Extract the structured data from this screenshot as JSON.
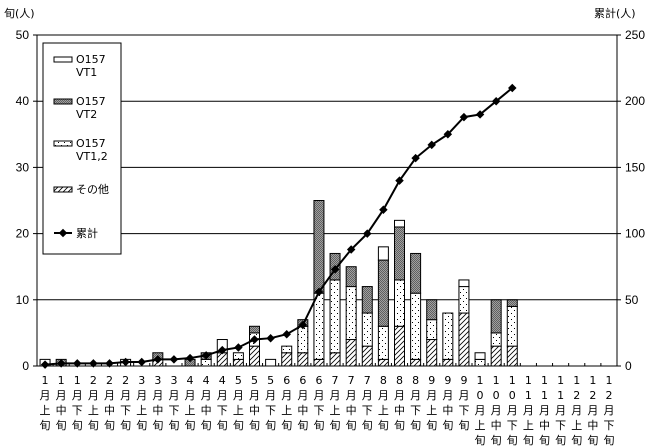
{
  "chart_data": {
    "type": "bar",
    "stacked": true,
    "secondary_type": "line",
    "title": "",
    "ylabel_left": "旬(人)",
    "ylabel_right": "累計(人)",
    "ylim_left": [
      0,
      50
    ],
    "yticks_left": [
      0,
      10,
      20,
      30,
      40,
      50
    ],
    "ylim_right": [
      0,
      250
    ],
    "yticks_right": [
      0,
      50,
      100,
      150,
      200,
      250
    ],
    "grid": true,
    "legend_position": "upper-left",
    "categories": [
      "1月上旬",
      "1月中旬",
      "1月下旬",
      "2月上旬",
      "2月中旬",
      "2月下旬",
      "3月上旬",
      "3月中旬",
      "3月下旬",
      "4月上旬",
      "4月中旬",
      "4月下旬",
      "5月上旬",
      "5月中旬",
      "5月下旬",
      "6月上旬",
      "6月中旬",
      "6月下旬",
      "7月上旬",
      "7月中旬",
      "7月下旬",
      "8月上旬",
      "8月中旬",
      "8月下旬",
      "9月上旬",
      "9月中旬",
      "9月下旬",
      "10月上旬",
      "10月中旬",
      "10月下旬",
      "11月上旬",
      "11月中旬",
      "11月下旬",
      "12月上旬",
      "12月中旬",
      "12月下旬"
    ],
    "category_labels": [
      [
        "1",
        "月",
        "上",
        "旬"
      ],
      [
        "1",
        "月",
        "中",
        "旬"
      ],
      [
        "1",
        "月",
        "下",
        "旬"
      ],
      [
        "2",
        "月",
        "上",
        "旬"
      ],
      [
        "2",
        "月",
        "中",
        "旬"
      ],
      [
        "2",
        "月",
        "下",
        "旬"
      ],
      [
        "3",
        "月",
        "上",
        "旬"
      ],
      [
        "3",
        "月",
        "中",
        "旬"
      ],
      [
        "3",
        "月",
        "下",
        "旬"
      ],
      [
        "4",
        "月",
        "上",
        "旬"
      ],
      [
        "4",
        "月",
        "中",
        "旬"
      ],
      [
        "4",
        "月",
        "下",
        "旬"
      ],
      [
        "5",
        "月",
        "上",
        "旬"
      ],
      [
        "5",
        "月",
        "中",
        "旬"
      ],
      [
        "5",
        "月",
        "下",
        "旬"
      ],
      [
        "6",
        "月",
        "上",
        "旬"
      ],
      [
        "6",
        "月",
        "中",
        "旬"
      ],
      [
        "6",
        "月",
        "下",
        "旬"
      ],
      [
        "7",
        "月",
        "上",
        "旬"
      ],
      [
        "7",
        "月",
        "中",
        "旬"
      ],
      [
        "7",
        "月",
        "下",
        "旬"
      ],
      [
        "8",
        "月",
        "上",
        "旬"
      ],
      [
        "8",
        "月",
        "中",
        "旬"
      ],
      [
        "8",
        "月",
        "下",
        "旬"
      ],
      [
        "9",
        "月",
        "上",
        "旬"
      ],
      [
        "9",
        "月",
        "中",
        "旬"
      ],
      [
        "9",
        "月",
        "下",
        "旬"
      ],
      [
        "1",
        "0",
        "月",
        "上",
        "旬"
      ],
      [
        "1",
        "0",
        "月",
        "中",
        "旬"
      ],
      [
        "1",
        "0",
        "月",
        "下",
        "旬"
      ],
      [
        "1",
        "1",
        "月",
        "上",
        "旬"
      ],
      [
        "1",
        "1",
        "月",
        "中",
        "旬"
      ],
      [
        "1",
        "1",
        "月",
        "下",
        "旬"
      ],
      [
        "1",
        "2",
        "月",
        "上",
        "旬"
      ],
      [
        "1",
        "2",
        "月",
        "中",
        "旬"
      ],
      [
        "1",
        "2",
        "月",
        "下",
        "旬"
      ]
    ],
    "series": [
      {
        "name": "その他",
        "kind": "bar",
        "pattern": "hatch",
        "values": [
          0,
          0,
          0,
          0,
          0,
          0,
          0,
          1,
          0,
          0,
          0,
          2,
          1,
          3,
          0,
          2,
          2,
          1,
          2,
          4,
          3,
          1,
          6,
          1,
          4,
          1,
          8,
          0,
          3,
          3,
          0,
          0,
          0,
          0,
          0,
          0
        ]
      },
      {
        "name": "O157 VT1,2",
        "kind": "bar",
        "pattern": "dots",
        "values": [
          0,
          0,
          0,
          0,
          0,
          1,
          0,
          0,
          0,
          0,
          1,
          0,
          1,
          2,
          0,
          1,
          4,
          10,
          11,
          8,
          5,
          5,
          7,
          10,
          3,
          7,
          4,
          1,
          2,
          6,
          0,
          0,
          0,
          0,
          0,
          0
        ]
      },
      {
        "name": "O157 VT2",
        "kind": "bar",
        "pattern": "gray",
        "values": [
          0,
          1,
          0,
          0,
          0,
          0,
          0,
          1,
          0,
          1,
          1,
          0,
          0,
          1,
          0,
          0,
          1,
          14,
          4,
          3,
          4,
          10,
          8,
          6,
          3,
          0,
          0,
          0,
          5,
          1,
          0,
          0,
          0,
          0,
          0,
          0
        ]
      },
      {
        "name": "O157 VT1",
        "kind": "bar",
        "pattern": "white",
        "values": [
          1,
          0,
          0,
          0,
          0,
          0,
          0,
          0,
          0,
          0,
          0,
          2,
          0,
          0,
          1,
          0,
          0,
          0,
          0,
          0,
          0,
          2,
          1,
          0,
          0,
          0,
          1,
          1,
          0,
          0,
          0,
          0,
          0,
          0,
          0,
          0
        ]
      },
      {
        "name": "累計",
        "kind": "line",
        "axis": "right",
        "values": [
          1,
          2,
          2,
          2,
          2,
          3,
          3,
          5,
          5,
          6,
          8,
          12,
          14,
          20,
          21,
          24,
          31,
          56,
          73,
          88,
          100,
          118,
          140,
          157,
          167,
          175,
          188,
          190,
          200,
          210,
          null,
          null,
          null,
          null,
          null,
          null
        ]
      }
    ]
  },
  "legend": {
    "items": [
      {
        "line1": "O157",
        "line2": "VT1"
      },
      {
        "line1": "O157",
        "line2": "VT2"
      },
      {
        "line1": "O157",
        "line2": "VT1,2"
      },
      {
        "line1": "その他",
        "line2": ""
      },
      {
        "line1": "累計",
        "line2": ""
      }
    ]
  },
  "axes": {
    "left_title": "旬(人)",
    "right_title": "累計(人)",
    "left_ticks": [
      "0",
      "10",
      "20",
      "30",
      "40",
      "50"
    ],
    "right_ticks": [
      "0",
      "50",
      "100",
      "150",
      "200",
      "250"
    ]
  },
  "colors": {
    "vt2_fill": "#808080",
    "line": "#000000",
    "grid": "#000000"
  }
}
